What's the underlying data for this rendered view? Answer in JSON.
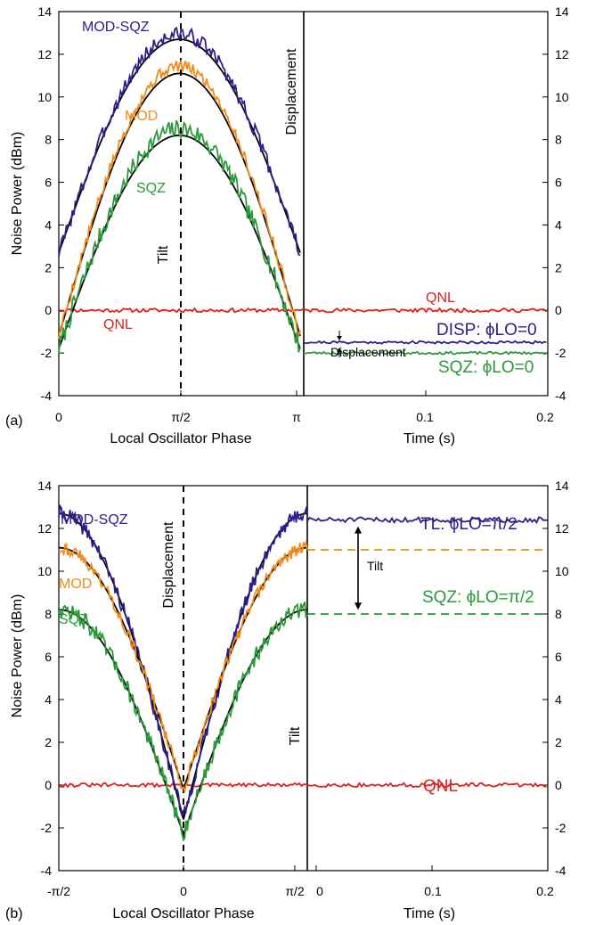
{
  "colors": {
    "mod_sqz": "#2e1e8a",
    "mod": "#f28c18",
    "sqz": "#2a9a3a",
    "qnl": "#e0201c",
    "fit": "#000000",
    "axis": "#000000"
  },
  "chart_data": [
    {
      "panel_label": "(a)",
      "type": "line",
      "ylabel": "Noise Power (dBm)",
      "ylim": [
        -4,
        14
      ],
      "yticks": [
        "-4",
        "-2",
        "0",
        "2",
        "4",
        "6",
        "8",
        "10",
        "12",
        "14"
      ],
      "left_xlabel": "Local Oscillator Phase",
      "left_xticks": [
        "0",
        "π/2",
        "π"
      ],
      "right_xlabel": "Time (s)",
      "right_xticks": [
        "0.1",
        "0.2"
      ],
      "right_xlim": [
        0,
        0.2
      ],
      "series": [
        {
          "key": "mod_sqz",
          "name": "MOD-SQZ",
          "phase_x": [
            0,
            0.25,
            0.5,
            0.75,
            1.0
          ],
          "phase_y": [
            2.7,
            10.4,
            12.7,
            10.4,
            2.7
          ],
          "peak_measured": 12.9
        },
        {
          "key": "mod",
          "name": "MOD",
          "phase_x": [
            0,
            0.25,
            0.5,
            0.75,
            1.0
          ],
          "phase_y": [
            -1.2,
            7.8,
            11.1,
            7.8,
            -1.2
          ],
          "peak_measured": 11.5
        },
        {
          "key": "sqz",
          "name": "SQZ",
          "phase_x": [
            0,
            0.25,
            0.5,
            0.75,
            1.0
          ],
          "phase_y": [
            -1.8,
            5.0,
            8.2,
            5.0,
            -1.8
          ],
          "peak_measured": 8.7
        },
        {
          "key": "qnl",
          "name": "QNL",
          "value": 0
        }
      ],
      "time_traces": [
        {
          "key": "qnl",
          "label": "QNL",
          "value": 0
        },
        {
          "key": "mod_sqz",
          "label": "DISP:",
          "label_tail": "ϕLO=0",
          "value": -1.5
        },
        {
          "key": "sqz",
          "label": "SQZ:",
          "label_tail": "ϕLO=0",
          "value": -2.0
        }
      ],
      "annotations": {
        "tilt": "Tilt",
        "displacement_vertical": "Displacement",
        "displacement_arrow": "Displacement"
      }
    },
    {
      "panel_label": "(b)",
      "type": "line",
      "ylabel": "Noise Power (dBm)",
      "ylim": [
        -4,
        14
      ],
      "yticks": [
        "-4",
        "-2",
        "0",
        "2",
        "4",
        "6",
        "8",
        "10",
        "12",
        "14"
      ],
      "left_xlabel": "Local Oscillator Phase",
      "left_xticks": [
        "-π/2",
        "0",
        "π/2"
      ],
      "right_xlabel": "Time (s)",
      "right_xticks": [
        "0",
        "0.1",
        "0.2"
      ],
      "right_xlim": [
        0,
        0.2
      ],
      "series": [
        {
          "key": "mod_sqz",
          "name": "MOD-SQZ",
          "phase_x": [
            -0.5,
            -0.25,
            0,
            0.25,
            0.5
          ],
          "phase_y": [
            12.7,
            10.4,
            -1.6,
            10.4,
            12.7
          ]
        },
        {
          "key": "mod",
          "name": "MOD",
          "phase_x": [
            -0.5,
            -0.25,
            0,
            0.25,
            0.5
          ],
          "phase_y": [
            11.1,
            7.8,
            -0.2,
            7.8,
            11.1
          ]
        },
        {
          "key": "sqz",
          "name": "SQZ",
          "phase_x": [
            -0.5,
            -0.25,
            0,
            0.25,
            0.5
          ],
          "phase_y": [
            8.2,
            5.0,
            -2.3,
            5.0,
            8.2
          ]
        },
        {
          "key": "qnl",
          "name": "QNL",
          "value": 0
        }
      ],
      "time_traces": [
        {
          "key": "mod_sqz",
          "label": "TL:",
          "label_tail": "ϕLO=π/2",
          "value": 12.4
        },
        {
          "key": "mod",
          "label": "",
          "value": 11.0,
          "dashed": true
        },
        {
          "key": "sqz",
          "label": "SQZ:",
          "label_tail": "ϕLO=π/2",
          "value": 8.0,
          "dashed": true
        },
        {
          "key": "qnl",
          "label": "QNL",
          "value": 0
        }
      ],
      "annotations": {
        "tilt": "Tilt",
        "displacement_vertical": "Displacement",
        "tilt_arrow": "Tilt"
      }
    }
  ]
}
